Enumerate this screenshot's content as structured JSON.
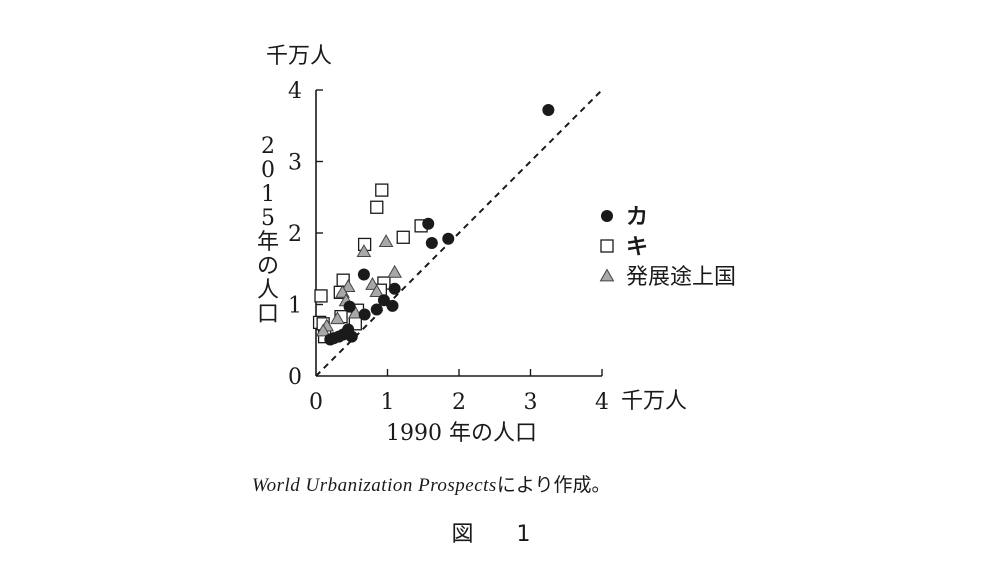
{
  "chart_data": {
    "type": "scatter",
    "xlabel": "1990 年の人口",
    "ylabel": "2015年の人口",
    "unit": "千万人",
    "xlim": [
      0,
      4
    ],
    "ylim": [
      0,
      4
    ],
    "xticks": [
      "0",
      "1",
      "2",
      "3",
      "4"
    ],
    "yticks": [
      "0",
      "1",
      "2",
      "3",
      "4"
    ],
    "reference_line": "y = x (dashed)",
    "legend_position": "right",
    "series": [
      {
        "name": "カ",
        "marker": "filled-circle",
        "color": "#1a1a1a",
        "points": [
          [
            3.25,
            3.72
          ],
          [
            1.57,
            2.13
          ],
          [
            1.62,
            1.86
          ],
          [
            1.85,
            1.92
          ],
          [
            0.67,
            1.42
          ],
          [
            0.47,
            0.97
          ],
          [
            1.1,
            1.22
          ],
          [
            0.95,
            1.06
          ],
          [
            1.07,
            0.98
          ],
          [
            0.85,
            0.93
          ],
          [
            0.68,
            0.86
          ],
          [
            0.45,
            0.65
          ],
          [
            0.5,
            0.55
          ],
          [
            0.38,
            0.58
          ],
          [
            0.32,
            0.55
          ],
          [
            0.25,
            0.53
          ],
          [
            0.2,
            0.51
          ],
          [
            0.42,
            0.6
          ]
        ]
      },
      {
        "name": "キ",
        "marker": "open-square",
        "color": "#1a1a1a",
        "points": [
          [
            0.92,
            2.6
          ],
          [
            0.85,
            2.36
          ],
          [
            1.47,
            2.1
          ],
          [
            1.22,
            1.94
          ],
          [
            0.68,
            1.84
          ],
          [
            0.07,
            1.12
          ],
          [
            0.38,
            1.34
          ],
          [
            0.34,
            1.17
          ],
          [
            0.05,
            0.75
          ],
          [
            0.1,
            0.73
          ],
          [
            0.35,
            0.83
          ],
          [
            0.55,
            0.73
          ],
          [
            0.95,
            1.3
          ],
          [
            0.9,
            1.2
          ],
          [
            0.12,
            0.55
          ],
          [
            0.58,
            0.92
          ]
        ]
      },
      {
        "name": "発展途上国",
        "marker": "gray-triangle",
        "color": "#a8a8a8",
        "points": [
          [
            0.98,
            1.88
          ],
          [
            0.67,
            1.74
          ],
          [
            0.45,
            1.25
          ],
          [
            0.37,
            1.17
          ],
          [
            1.1,
            1.45
          ],
          [
            0.79,
            1.28
          ],
          [
            0.42,
            1.05
          ],
          [
            0.15,
            0.7
          ],
          [
            0.85,
            1.18
          ],
          [
            0.1,
            0.63
          ],
          [
            0.3,
            0.8
          ],
          [
            0.55,
            0.88
          ]
        ]
      }
    ]
  },
  "figure": {
    "y_unit_label": "千万人",
    "x_unit_label": "千万人",
    "y_axis_title_chars": [
      "2",
      "0",
      "1",
      "5",
      "年",
      "の",
      "人",
      "口"
    ],
    "x_axis_title": "1990 年の人口",
    "caption_source": "World Urbanization Prospects",
    "caption_suffix": "により作成。",
    "figure_label": "図 1"
  }
}
